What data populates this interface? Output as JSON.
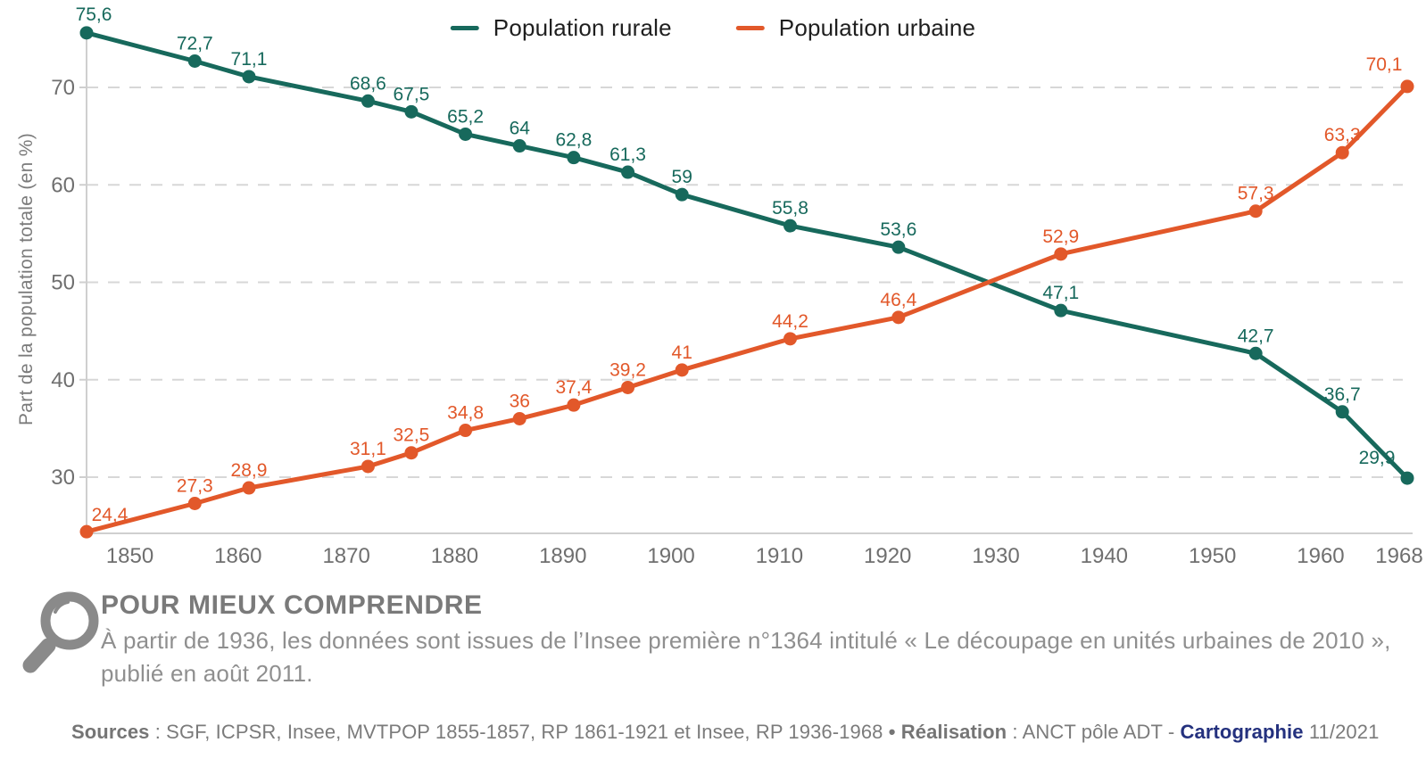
{
  "chart_data": {
    "type": "line",
    "x": [
      1846,
      1856,
      1861,
      1872,
      1876,
      1881,
      1886,
      1891,
      1896,
      1901,
      1911,
      1921,
      1936,
      1954,
      1962,
      1968
    ],
    "series": [
      {
        "name": "Population rurale",
        "color": "#17695c",
        "values": [
          75.6,
          72.7,
          71.1,
          68.6,
          67.5,
          65.2,
          64,
          62.8,
          61.3,
          59,
          55.8,
          53.6,
          47.1,
          42.7,
          36.7,
          29.9
        ]
      },
      {
        "name": "Population urbaine",
        "color": "#e2582a",
        "values": [
          24.4,
          27.3,
          28.9,
          31.1,
          32.5,
          34.8,
          36,
          37.4,
          39.2,
          41,
          44.2,
          46.4,
          52.9,
          57.3,
          63.3,
          70.1
        ]
      }
    ],
    "title": "",
    "xlabel": "",
    "ylabel": "Part de la population totale (en %)",
    "yticks": [
      30,
      40,
      50,
      60,
      70
    ],
    "xticks": [
      1850,
      1860,
      1870,
      1880,
      1890,
      1900,
      1910,
      1920,
      1930,
      1940,
      1950,
      1960,
      1968
    ],
    "xlim": [
      1846,
      1968
    ],
    "ylim": [
      24.3,
      76
    ],
    "grid": "horizontal-dashed",
    "legend_position": "top-center",
    "decimal_separator": ","
  },
  "colors": {
    "rural": "#17695c",
    "urban": "#e2582a",
    "grid": "#d7d7d7",
    "axis": "#cfcfcf",
    "tick_label": "#6f6f6f",
    "navy": "#24317e",
    "note_gray": "#7a7a7a"
  },
  "note": {
    "title": "POUR MIEUX COMPRENDRE",
    "body": "À partir de 1936, les données sont issues de l’Insee première n°1364 intitulé « Le découpage en unités urbaines de 2010 », publié en août 2011.",
    "icon": "magnifier-icon"
  },
  "sources": {
    "label": "Sources",
    "list": " : SGF, ICPSR, Insee, MVTPOP 1855-1857, RP 1861-1921 et Insee, RP 1936-1968 ",
    "realisation_label": "• Réalisation",
    "realisation_text": " : ANCT pôle ADT -  ",
    "cartographie": "Cartographie",
    "date": " 11/2021"
  }
}
